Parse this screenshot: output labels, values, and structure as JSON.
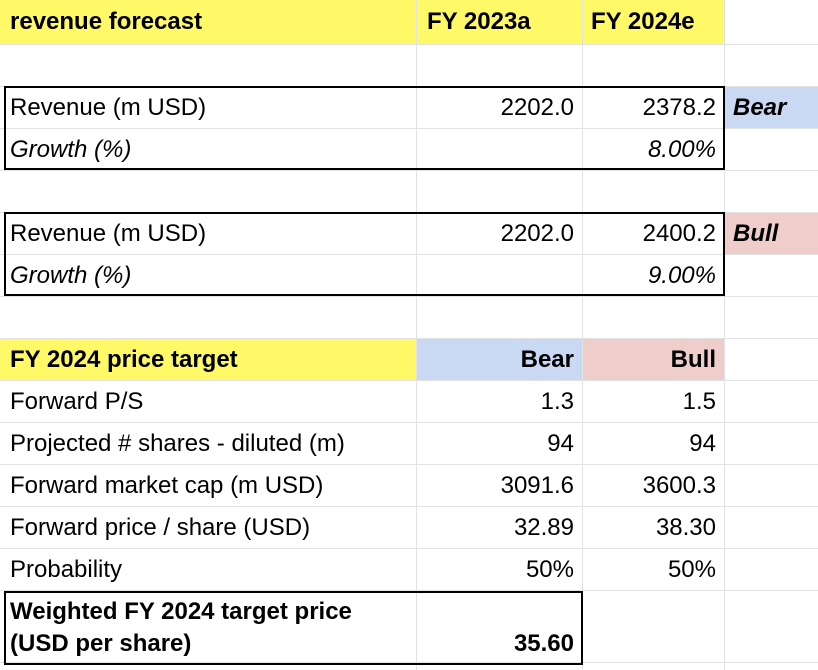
{
  "header": {
    "title": "revenue forecast",
    "col1": "FY 2023a",
    "col2": "FY 2024e"
  },
  "bear_block": {
    "revenue_label": "Revenue (m USD)",
    "revenue_2023": "2202.0",
    "revenue_2024": "2378.2",
    "scenario": "Bear",
    "growth_label": "Growth (%)",
    "growth_2024": "8.00%"
  },
  "bull_block": {
    "revenue_label": "Revenue (m USD)",
    "revenue_2023": "2202.0",
    "revenue_2024": "2400.2",
    "scenario": "Bull",
    "growth_label": "Growth (%)",
    "growth_2024": "9.00%"
  },
  "price_target": {
    "title": "FY 2024 price target",
    "col_bear": "Bear",
    "col_bull": "Bull",
    "rows": [
      {
        "label": "Forward P/S",
        "bear": "1.3",
        "bull": "1.5"
      },
      {
        "label": "Projected # shares - diluted (m)",
        "bear": "94",
        "bull": "94"
      },
      {
        "label": "Forward market cap (m USD)",
        "bear": "3091.6",
        "bull": "3600.3"
      },
      {
        "label": "Forward price / share (USD)",
        "bear": "32.89",
        "bull": "38.30"
      },
      {
        "label": "Probability",
        "bear": "50%",
        "bull": "50%"
      }
    ],
    "weighted_label_line1": "Weighted FY 2024 target price",
    "weighted_label_line2": "(USD per share)",
    "weighted_value": "35.60"
  },
  "colors": {
    "header_yellow": "#fff968",
    "bear_blue": "#c9d9f3",
    "bull_pink": "#efcdcb",
    "gridline": "#e2e2e2"
  }
}
